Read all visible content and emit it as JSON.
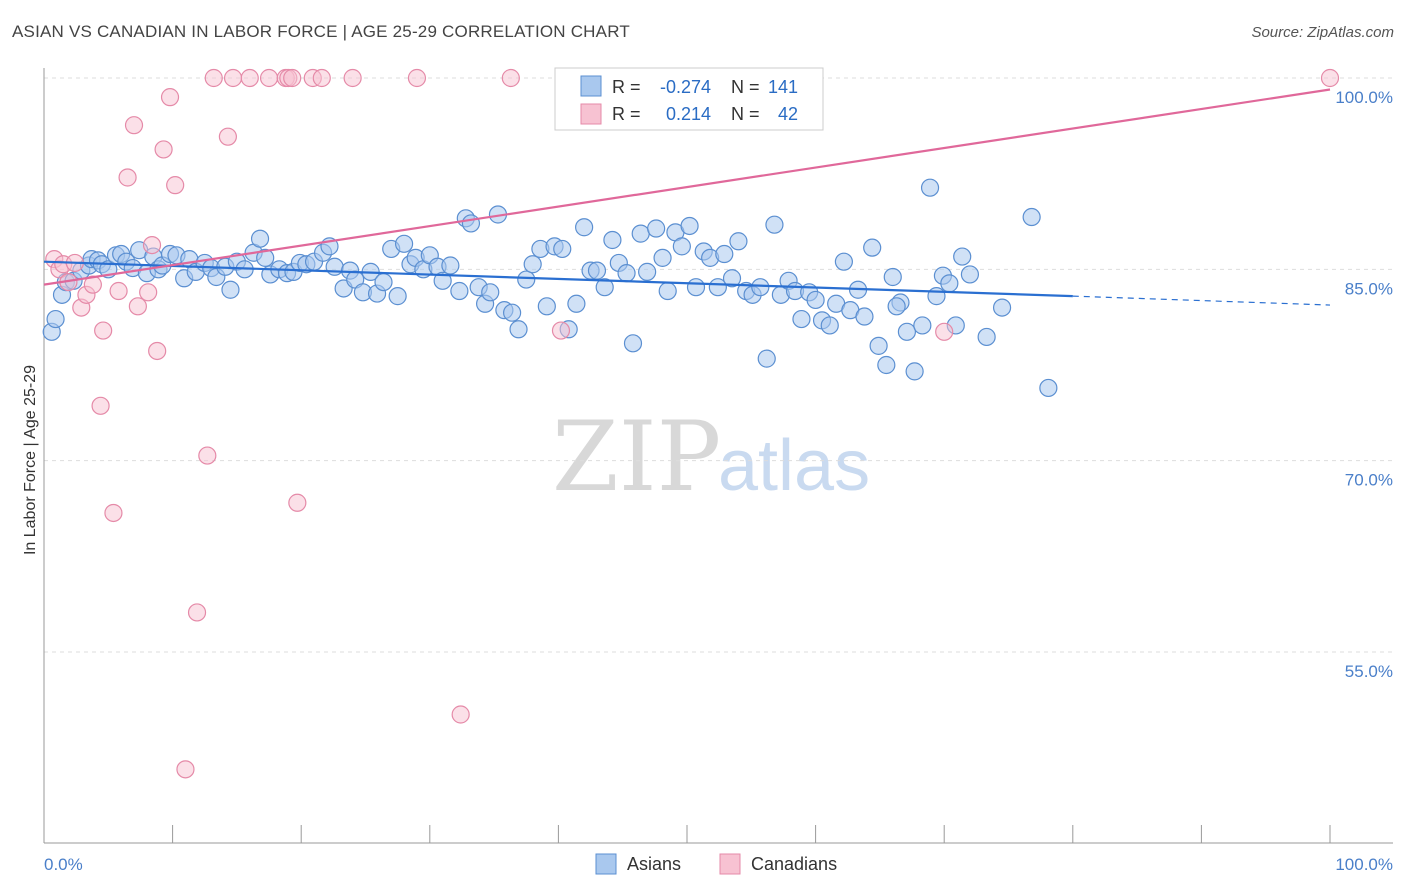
{
  "title": "ASIAN VS CANADIAN IN LABOR FORCE | AGE 25-29 CORRELATION CHART",
  "source": "Source: ZipAtlas.com",
  "watermark": {
    "zip": "ZIP",
    "atlas": "atlas"
  },
  "colors": {
    "asian_fill": "#a9c8ee",
    "asian_stroke": "#5b8fd1",
    "asian_line": "#2a6fd1",
    "canadian_fill": "#f7c2d2",
    "canadian_stroke": "#e58aa8",
    "canadian_line": "#e0689a",
    "grid": "#dddddd",
    "axis": "#999999"
  },
  "legend_top": {
    "rows": [
      {
        "r_label": "R =",
        "r_value": "-0.274",
        "n_label": "N =",
        "n_value": "141"
      },
      {
        "r_label": "R =",
        "r_value": "0.214",
        "n_label": "N =",
        "n_value": "42"
      }
    ]
  },
  "legend_bottom": {
    "asians": "Asians",
    "canadians": "Canadians"
  },
  "chart_data": {
    "type": "scatter",
    "title": "ASIAN VS CANADIAN IN LABOR FORCE | AGE 25-29 CORRELATION CHART",
    "xlabel": "",
    "ylabel": "In Labor Force | Age 25-29",
    "xlim": [
      0,
      100
    ],
    "ylim": [
      40,
      102
    ],
    "x_tick_labels": [
      "0.0%",
      "100.0%"
    ],
    "y_ticks": [
      55,
      70,
      85,
      100
    ],
    "y_tick_labels": [
      "55.0%",
      "70.0%",
      "85.0%",
      "100.0%"
    ],
    "series": [
      {
        "name": "Asians",
        "trend": {
          "x0": 0,
          "y0": 85.6,
          "x1": 80,
          "y1": 82.9,
          "dash_to_x": 100,
          "dash_to_y": 82.2
        },
        "points": [
          [
            0.6,
            80.1
          ],
          [
            0.9,
            81.1
          ],
          [
            1.4,
            83.0
          ],
          [
            1.7,
            84.0
          ],
          [
            2.3,
            84.1
          ],
          [
            2.9,
            84.9
          ],
          [
            3.5,
            85.3
          ],
          [
            3.7,
            85.8
          ],
          [
            4.2,
            85.7
          ],
          [
            4.5,
            85.4
          ],
          [
            5.0,
            85.0
          ],
          [
            5.6,
            86.1
          ],
          [
            6.0,
            86.2
          ],
          [
            6.4,
            85.6
          ],
          [
            6.9,
            85.1
          ],
          [
            7.4,
            86.5
          ],
          [
            8.0,
            84.7
          ],
          [
            8.5,
            86.0
          ],
          [
            8.9,
            85.0
          ],
          [
            9.2,
            85.3
          ],
          [
            9.8,
            86.2
          ],
          [
            10.3,
            86.1
          ],
          [
            10.9,
            84.3
          ],
          [
            11.3,
            85.8
          ],
          [
            11.8,
            84.8
          ],
          [
            12.5,
            85.5
          ],
          [
            13.0,
            85.1
          ],
          [
            13.4,
            84.4
          ],
          [
            14.1,
            85.2
          ],
          [
            14.5,
            83.4
          ],
          [
            15.0,
            85.6
          ],
          [
            15.6,
            85.0
          ],
          [
            16.3,
            86.3
          ],
          [
            16.8,
            87.4
          ],
          [
            17.2,
            85.9
          ],
          [
            17.6,
            84.6
          ],
          [
            18.3,
            85.0
          ],
          [
            18.9,
            84.7
          ],
          [
            19.4,
            84.8
          ],
          [
            19.9,
            85.5
          ],
          [
            20.4,
            85.4
          ],
          [
            21.0,
            85.6
          ],
          [
            21.7,
            86.3
          ],
          [
            22.2,
            86.8
          ],
          [
            22.6,
            85.2
          ],
          [
            23.3,
            83.5
          ],
          [
            23.8,
            84.9
          ],
          [
            24.2,
            84.2
          ],
          [
            24.8,
            83.2
          ],
          [
            25.4,
            84.8
          ],
          [
            25.9,
            83.1
          ],
          [
            26.4,
            84.0
          ],
          [
            27.0,
            86.6
          ],
          [
            27.5,
            82.9
          ],
          [
            28.0,
            87.0
          ],
          [
            28.5,
            85.4
          ],
          [
            28.9,
            85.9
          ],
          [
            29.5,
            85.0
          ],
          [
            30.0,
            86.1
          ],
          [
            30.6,
            85.2
          ],
          [
            31.0,
            84.1
          ],
          [
            31.6,
            85.3
          ],
          [
            32.3,
            83.3
          ],
          [
            32.8,
            89.0
          ],
          [
            33.2,
            88.6
          ],
          [
            33.8,
            83.6
          ],
          [
            34.3,
            82.3
          ],
          [
            34.7,
            83.2
          ],
          [
            35.3,
            89.3
          ],
          [
            35.8,
            81.8
          ],
          [
            36.4,
            81.6
          ],
          [
            36.9,
            80.3
          ],
          [
            37.5,
            84.2
          ],
          [
            38.0,
            85.4
          ],
          [
            38.6,
            86.6
          ],
          [
            39.1,
            82.1
          ],
          [
            39.7,
            86.8
          ],
          [
            40.3,
            86.6
          ],
          [
            40.8,
            80.3
          ],
          [
            41.4,
            82.3
          ],
          [
            42.0,
            88.3
          ],
          [
            42.5,
            84.9
          ],
          [
            43.0,
            84.9
          ],
          [
            43.6,
            83.6
          ],
          [
            44.2,
            87.3
          ],
          [
            44.7,
            85.5
          ],
          [
            45.3,
            84.7
          ],
          [
            45.8,
            79.2
          ],
          [
            46.4,
            87.8
          ],
          [
            46.9,
            84.8
          ],
          [
            47.6,
            88.2
          ],
          [
            48.1,
            85.9
          ],
          [
            48.5,
            83.3
          ],
          [
            49.1,
            87.9
          ],
          [
            49.6,
            86.8
          ],
          [
            50.2,
            88.4
          ],
          [
            50.7,
            83.6
          ],
          [
            51.3,
            86.4
          ],
          [
            51.8,
            85.9
          ],
          [
            52.4,
            83.6
          ],
          [
            52.9,
            86.2
          ],
          [
            53.5,
            84.3
          ],
          [
            54.0,
            87.2
          ],
          [
            54.6,
            83.3
          ],
          [
            55.1,
            83.0
          ],
          [
            55.7,
            83.6
          ],
          [
            56.2,
            78.0
          ],
          [
            56.8,
            88.5
          ],
          [
            57.3,
            83.0
          ],
          [
            57.9,
            84.1
          ],
          [
            58.4,
            83.3
          ],
          [
            58.9,
            81.1
          ],
          [
            59.5,
            83.2
          ],
          [
            60.0,
            82.6
          ],
          [
            60.5,
            81.0
          ],
          [
            61.1,
            80.6
          ],
          [
            61.6,
            82.3
          ],
          [
            62.2,
            85.6
          ],
          [
            62.7,
            81.8
          ],
          [
            63.3,
            83.4
          ],
          [
            63.8,
            81.3
          ],
          [
            64.4,
            86.7
          ],
          [
            64.9,
            79.0
          ],
          [
            65.5,
            77.5
          ],
          [
            66.0,
            84.4
          ],
          [
            66.6,
            82.4
          ],
          [
            67.1,
            80.1
          ],
          [
            67.7,
            77.0
          ],
          [
            68.3,
            80.6
          ],
          [
            68.9,
            91.4
          ],
          [
            69.4,
            82.9
          ],
          [
            69.9,
            84.5
          ],
          [
            70.4,
            83.9
          ],
          [
            70.9,
            80.6
          ],
          [
            71.4,
            86.0
          ],
          [
            72.0,
            84.6
          ],
          [
            73.3,
            79.7
          ],
          [
            74.5,
            82.0
          ],
          [
            76.8,
            89.1
          ],
          [
            78.1,
            75.7
          ],
          [
            66.3,
            82.1
          ]
        ]
      },
      {
        "name": "Canadians",
        "trend": {
          "x0": 0,
          "y0": 83.8,
          "x1": 100,
          "y1": 99.1
        },
        "points": [
          [
            0.8,
            85.8
          ],
          [
            1.2,
            85.0
          ],
          [
            1.5,
            85.4
          ],
          [
            1.9,
            84.0
          ],
          [
            2.4,
            85.5
          ],
          [
            2.9,
            82.0
          ],
          [
            3.3,
            83.0
          ],
          [
            3.8,
            83.8
          ],
          [
            4.4,
            74.3
          ],
          [
            4.6,
            80.2
          ],
          [
            5.4,
            65.9
          ],
          [
            5.8,
            83.3
          ],
          [
            6.5,
            92.2
          ],
          [
            7.0,
            96.3
          ],
          [
            7.3,
            82.1
          ],
          [
            8.1,
            83.2
          ],
          [
            8.4,
            86.9
          ],
          [
            8.8,
            78.6
          ],
          [
            9.3,
            94.4
          ],
          [
            9.8,
            98.5
          ],
          [
            10.2,
            91.6
          ],
          [
            11.0,
            45.8
          ],
          [
            11.9,
            58.1
          ],
          [
            12.7,
            70.4
          ],
          [
            13.2,
            100.0
          ],
          [
            14.3,
            95.4
          ],
          [
            14.7,
            100.0
          ],
          [
            16.0,
            100.0
          ],
          [
            17.5,
            100.0
          ],
          [
            18.8,
            100.0
          ],
          [
            19.0,
            100.0
          ],
          [
            19.3,
            100.0
          ],
          [
            19.7,
            66.7
          ],
          [
            20.9,
            100.0
          ],
          [
            21.6,
            100.0
          ],
          [
            24.0,
            100.0
          ],
          [
            29.0,
            100.0
          ],
          [
            32.4,
            50.1
          ],
          [
            36.3,
            100.0
          ],
          [
            40.2,
            80.2
          ],
          [
            70.0,
            80.1
          ],
          [
            100.0,
            100.0
          ]
        ]
      }
    ]
  }
}
